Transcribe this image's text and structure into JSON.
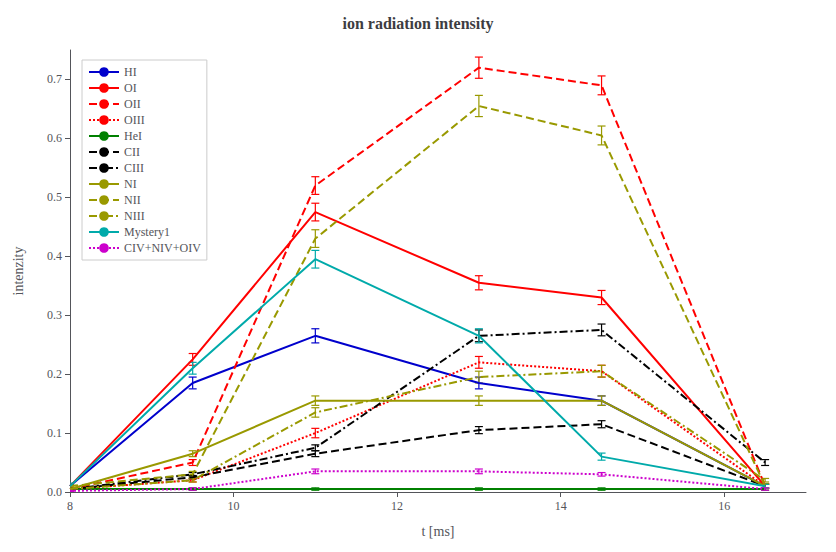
{
  "chart_data": {
    "type": "line",
    "title": "ion radiation intensity",
    "xlabel": "t [ms]",
    "ylabel": "intenzity",
    "xlim": [
      8,
      17
    ],
    "ylim": [
      0,
      0.75
    ],
    "xticks": [
      8,
      10,
      12,
      14,
      16
    ],
    "yticks": [
      {
        "value": 0.0,
        "label": "0.0"
      },
      0.1,
      0.2,
      0.3,
      0.4,
      0.5,
      0.6,
      0.7
    ],
    "grid": false,
    "legend": "upper left",
    "series": [
      {
        "name": "HI",
        "color": "#0000cc",
        "line_style": "solid",
        "x": [
          8.0,
          9.5,
          11.0,
          13.0,
          14.5,
          16.5
        ],
        "values": [
          0.01,
          0.185,
          0.265,
          0.185,
          0.155,
          0.01
        ],
        "yerr": [
          0.004,
          0.01,
          0.012,
          0.01,
          0.008,
          0.004
        ]
      },
      {
        "name": "OI",
        "color": "#ff0000",
        "line_style": "solid",
        "x": [
          8.0,
          9.5,
          11.0,
          13.0,
          14.5,
          16.5
        ],
        "values": [
          0.01,
          0.225,
          0.475,
          0.355,
          0.33,
          0.01
        ],
        "yerr": [
          0.004,
          0.01,
          0.015,
          0.012,
          0.012,
          0.004
        ]
      },
      {
        "name": "OII",
        "color": "#ff0000",
        "line_style": "dashed",
        "x": [
          8.0,
          9.5,
          11.0,
          13.0,
          14.5,
          16.5
        ],
        "values": [
          0.005,
          0.05,
          0.52,
          0.72,
          0.69,
          0.01
        ],
        "yerr": [
          0.003,
          0.005,
          0.015,
          0.018,
          0.016,
          0.004
        ]
      },
      {
        "name": "OIII",
        "color": "#ff0000",
        "line_style": "dotted",
        "x": [
          8.0,
          9.5,
          11.0,
          13.0,
          14.5,
          16.5
        ],
        "values": [
          0.005,
          0.02,
          0.1,
          0.22,
          0.205,
          0.01
        ],
        "yerr": [
          0.003,
          0.003,
          0.008,
          0.01,
          0.01,
          0.003
        ]
      },
      {
        "name": "HeI",
        "color": "#008000",
        "line_style": "solid",
        "x": [
          8.0,
          9.5,
          11.0,
          13.0,
          14.5,
          16.5
        ],
        "values": [
          0.005,
          0.005,
          0.005,
          0.005,
          0.005,
          0.005
        ],
        "yerr": [
          0.002,
          0.002,
          0.002,
          0.002,
          0.002,
          0.002
        ]
      },
      {
        "name": "CII",
        "color": "#000000",
        "line_style": "dashed",
        "x": [
          8.0,
          9.5,
          11.0,
          13.0,
          14.5,
          16.5
        ],
        "values": [
          0.005,
          0.025,
          0.065,
          0.105,
          0.115,
          0.01
        ],
        "yerr": [
          0.002,
          0.003,
          0.005,
          0.006,
          0.006,
          0.003
        ]
      },
      {
        "name": "CIII",
        "color": "#000000",
        "line_style": "dashdot",
        "x": [
          8.0,
          9.5,
          11.0,
          13.0,
          14.5,
          16.5
        ],
        "values": [
          0.005,
          0.03,
          0.075,
          0.265,
          0.275,
          0.05
        ],
        "yerr": [
          0.002,
          0.003,
          0.005,
          0.01,
          0.01,
          0.005
        ]
      },
      {
        "name": "NI",
        "color": "#999900",
        "line_style": "solid",
        "x": [
          8.0,
          9.5,
          11.0,
          13.0,
          14.5,
          16.5
        ],
        "values": [
          0.005,
          0.065,
          0.155,
          0.155,
          0.155,
          0.01
        ],
        "yerr": [
          0.003,
          0.005,
          0.008,
          0.008,
          0.008,
          0.003
        ]
      },
      {
        "name": "NII",
        "color": "#999900",
        "line_style": "dashed",
        "x": [
          8.0,
          9.5,
          11.0,
          13.0,
          14.5,
          16.5
        ],
        "values": [
          0.01,
          0.03,
          0.43,
          0.655,
          0.605,
          0.01
        ],
        "yerr": [
          0.003,
          0.005,
          0.015,
          0.018,
          0.016,
          0.004
        ]
      },
      {
        "name": "NIII",
        "color": "#999900",
        "line_style": "dashdot",
        "x": [
          8.0,
          9.5,
          11.0,
          13.0,
          14.5,
          16.5
        ],
        "values": [
          0.005,
          0.02,
          0.135,
          0.195,
          0.205,
          0.02
        ],
        "yerr": [
          0.003,
          0.003,
          0.008,
          0.01,
          0.01,
          0.003
        ]
      },
      {
        "name": "Mystery1",
        "color": "#00aaaa",
        "line_style": "solid",
        "x": [
          8.0,
          9.5,
          11.0,
          13.0,
          14.5,
          16.5
        ],
        "values": [
          0.01,
          0.21,
          0.395,
          0.265,
          0.06,
          0.01
        ],
        "yerr": [
          0.005,
          0.01,
          0.015,
          0.012,
          0.006,
          0.003
        ]
      },
      {
        "name": "CIV+NIV+OIV",
        "color": "#cc00cc",
        "line_style": "dotted",
        "x": [
          8.0,
          9.5,
          11.0,
          13.0,
          14.5,
          16.5
        ],
        "values": [
          0.002,
          0.005,
          0.035,
          0.035,
          0.03,
          0.005
        ],
        "yerr": [
          0.001,
          0.002,
          0.004,
          0.004,
          0.003,
          0.002
        ]
      }
    ]
  }
}
